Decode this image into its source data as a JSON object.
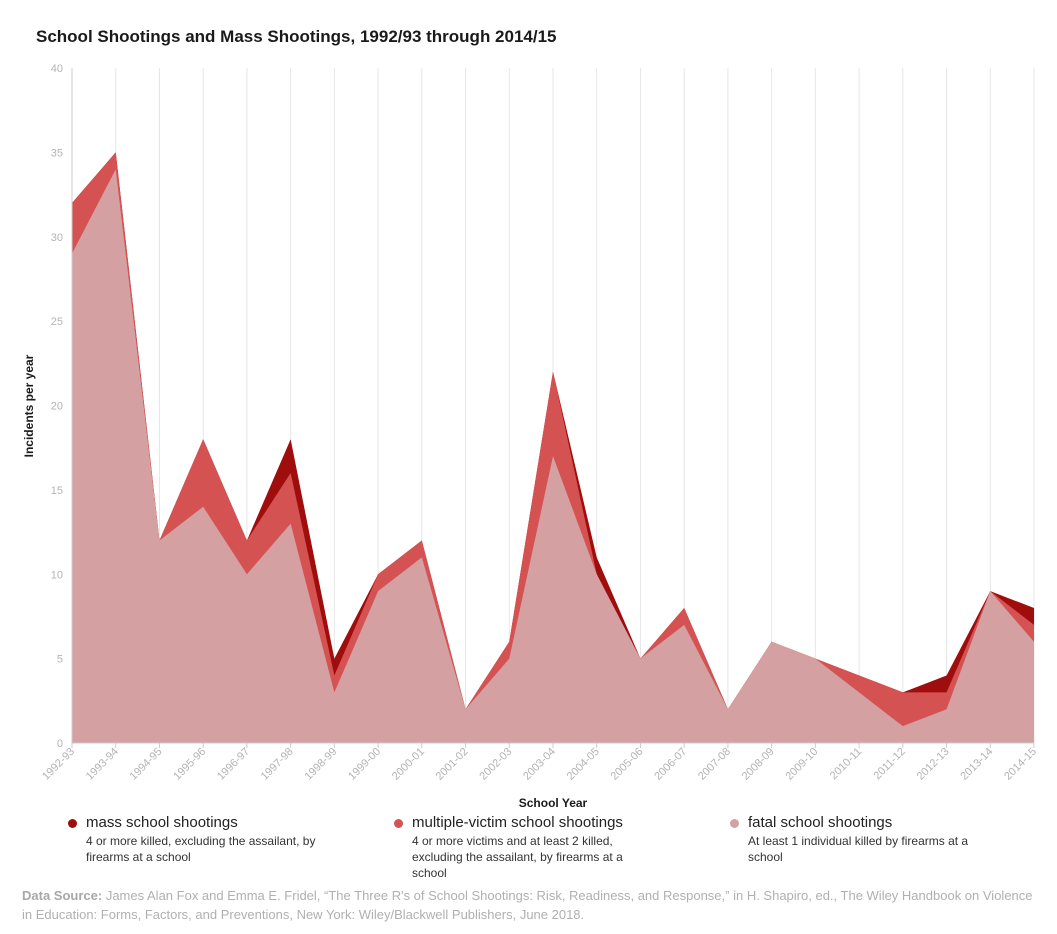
{
  "chart_data": {
    "type": "area",
    "title": "School Shootings and Mass Shootings, 1992/93 through 2014/15",
    "xlabel": "School Year",
    "ylabel": "Incidents per year",
    "ylim": [
      0,
      40
    ],
    "yticks": [
      "0",
      "5",
      "10",
      "15",
      "20",
      "25",
      "30",
      "35",
      "40"
    ],
    "categories": [
      "1992-93",
      "1993-94",
      "1994-95",
      "1995-96",
      "1996-97",
      "1997-98",
      "1998-99",
      "1999-00",
      "2000-01",
      "2001-02",
      "2002-03",
      "2003-04",
      "2004-05",
      "2005-06",
      "2006-07",
      "2007-08",
      "2008-09",
      "2009-10",
      "2010-11",
      "2011-12",
      "2012-13",
      "2013-14",
      "2014-15"
    ],
    "stacked": true,
    "grid": "vertical",
    "series": [
      {
        "name": "fatal school shootings",
        "description": "At least 1 individual killed by firearms at a school",
        "color": "#d4a0a1",
        "values": [
          29,
          34,
          12,
          14,
          10,
          13,
          3,
          9,
          11,
          2,
          5,
          17,
          10,
          5,
          7,
          2,
          6,
          5,
          3,
          1,
          2,
          9,
          6
        ]
      },
      {
        "name": "multiple-victim school shootings",
        "description": "4 or more victims and at least 2 killed, excluding the assailant, by firearms at a school",
        "color": "#d55252",
        "values": [
          3,
          1,
          0,
          4,
          2,
          3,
          1,
          1,
          1,
          0,
          1,
          5,
          0,
          0,
          1,
          0,
          0,
          0,
          1,
          2,
          1,
          0,
          1
        ]
      },
      {
        "name": "mass school shootings",
        "description": "4 or more killed, excluding the assailant, by firearms at a school",
        "color": "#a00d0d",
        "values": [
          0,
          0,
          0,
          0,
          0,
          2,
          1,
          0,
          0,
          0,
          0,
          0,
          1,
          0,
          0,
          0,
          0,
          0,
          0,
          0,
          1,
          0,
          1
        ]
      }
    ],
    "legend_order": [
      "mass school shootings",
      "multiple-victim school shootings",
      "fatal school shootings"
    ]
  },
  "source": {
    "label": "Data Source:",
    "text": "James Alan Fox and Emma E. Fridel, “The Three R's of School Shootings: Risk, Readiness, and Response,” in H. Shapiro, ed., The Wiley Handbook on Violence in Education: Forms, Factors, and Preventions, New York: Wiley/Blackwell Publishers, June 2018."
  }
}
